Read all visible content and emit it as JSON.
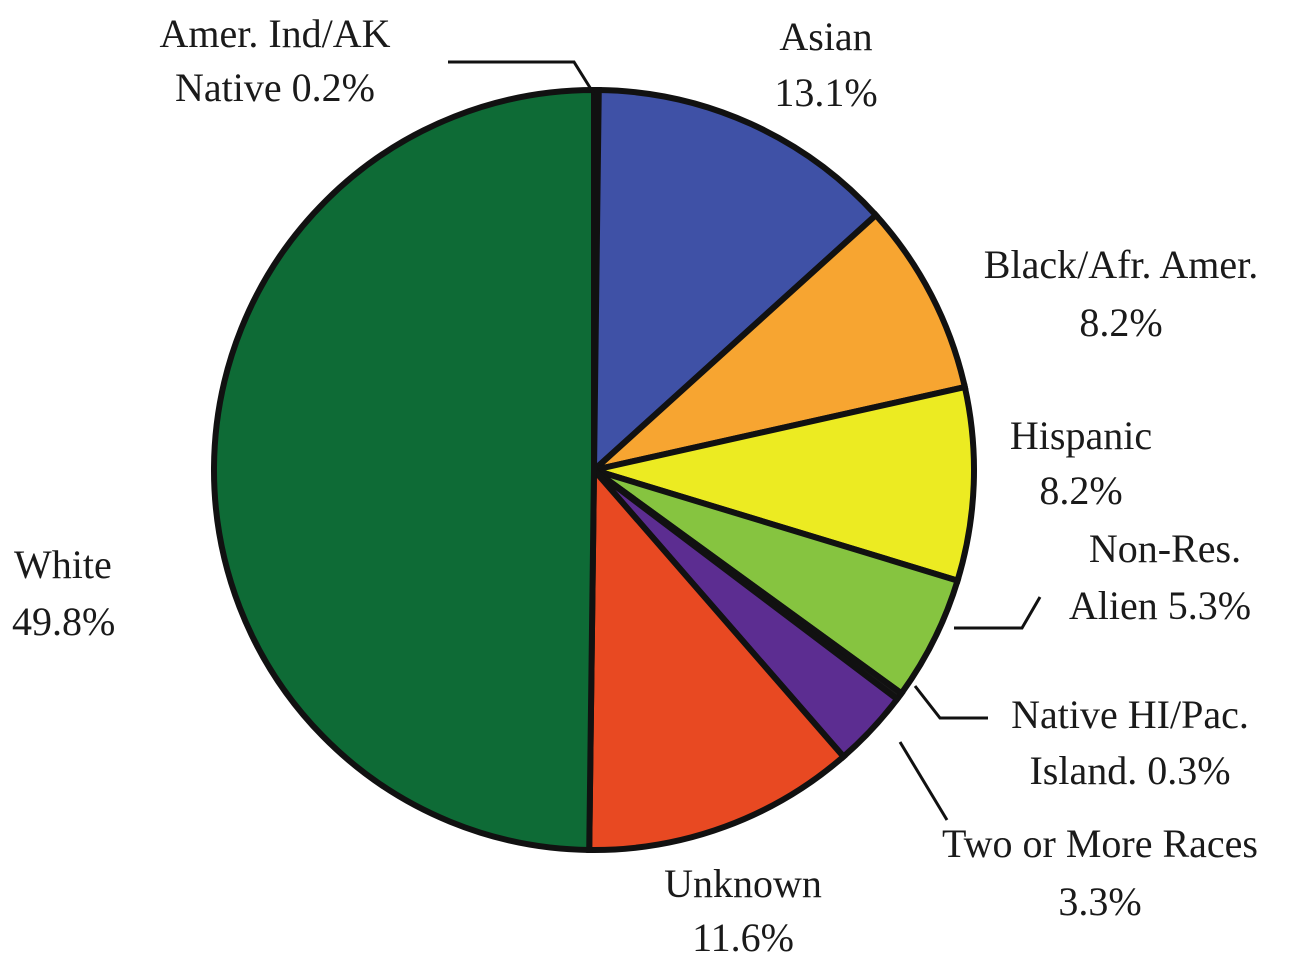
{
  "chart_data": {
    "type": "pie",
    "title": "",
    "slices": [
      {
        "name": "Amer. Ind/AK",
        "name2": "Native",
        "value": 0.2,
        "value_text": "0.2%",
        "color": "#1a1a1a"
      },
      {
        "name": "Asian",
        "value": 13.1,
        "value_text": "13.1%",
        "color": "#3f51a6"
      },
      {
        "name": "Black/Afr. Amer.",
        "value": 8.2,
        "value_text": "8.2%",
        "color": "#f7a531"
      },
      {
        "name": "Hispanic",
        "value": 8.2,
        "value_text": "8.2%",
        "color": "#eceb22"
      },
      {
        "name": "Non-Res.",
        "name2": "Alien",
        "value": 5.3,
        "value_text": "5.3%",
        "color": "#86c440"
      },
      {
        "name": "Native HI/Pac.",
        "name2": "Island.",
        "value": 0.3,
        "value_text": "0.3%",
        "color": "#1a1a1a"
      },
      {
        "name": "Two or More Races",
        "value": 3.3,
        "value_text": "3.3%",
        "color": "#5c2d91"
      },
      {
        "name": "Unknown",
        "value": 11.6,
        "value_text": "11.6%",
        "color": "#e84922"
      },
      {
        "name": "White",
        "value": 49.8,
        "value_text": "49.8%",
        "color": "#0e6b36"
      }
    ]
  }
}
